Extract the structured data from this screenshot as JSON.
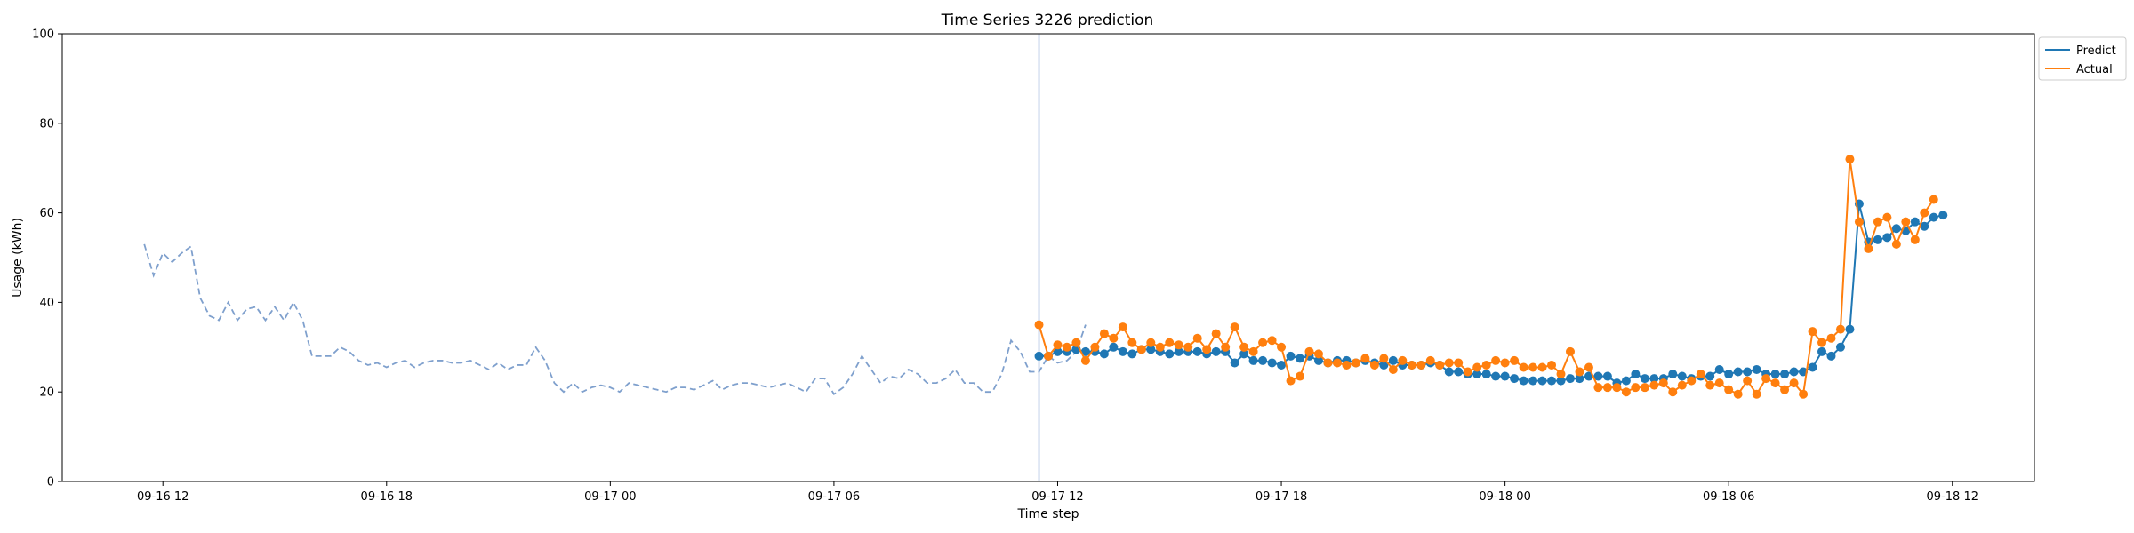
{
  "chart_data": {
    "type": "line",
    "title": "Time Series 3226 prediction",
    "xlabel": "Time step",
    "ylabel": "Usage (kWh)",
    "ylim": [
      0,
      100
    ],
    "yticks": [
      0,
      20,
      40,
      60,
      80,
      100
    ],
    "xticks": [
      "09-16 12",
      "09-16 18",
      "09-17 00",
      "09-17 06",
      "09-17 12",
      "09-17 18",
      "09-18 00",
      "09-18 06",
      "09-18 12"
    ],
    "xlim_hours": [
      -2.7,
      50.2
    ],
    "x_origin": "09-16 12",
    "x_step_hours": 0.25,
    "forecast_start_hours": 23.5,
    "legend_position": "top-right",
    "colors": {
      "predict": "#1f77b4",
      "actual": "#ff7f0e",
      "history": "#7fa0cd",
      "cutoff": "#8ea8d6"
    },
    "history": {
      "start_hours": -0.5,
      "values": [
        53,
        46,
        51,
        49,
        51,
        52.5,
        41,
        37,
        36,
        40,
        36,
        38.5,
        39,
        36,
        39,
        36,
        40,
        36,
        28,
        28,
        28,
        30,
        29,
        27,
        26,
        26.5,
        25.5,
        26.5,
        27,
        25.5,
        26.5,
        27,
        27,
        26.5,
        26.5,
        27,
        26,
        25,
        26.5,
        25,
        26,
        26,
        30,
        27,
        22,
        20,
        22,
        20,
        21,
        21.5,
        21,
        20,
        22,
        21.5,
        21,
        20.5,
        20,
        21,
        21,
        20.5,
        21.5,
        22.5,
        20.5,
        21.5,
        22,
        22,
        21.5,
        21,
        21.5,
        22,
        21,
        20,
        23,
        23,
        19.5,
        21,
        24,
        28,
        25,
        22,
        23.5,
        23,
        25,
        24,
        22,
        22,
        23,
        25,
        22,
        22,
        20,
        20,
        24,
        31.5,
        29,
        24.5,
        24.5,
        28,
        26.5,
        27,
        29,
        35
      ]
    },
    "series": [
      {
        "name": "Predict",
        "start_hours": 23.5,
        "values": [
          28,
          28,
          29,
          29,
          29.5,
          29,
          29,
          28.5,
          30,
          29,
          28.5,
          29.5,
          29.5,
          29,
          28.5,
          29,
          29,
          29,
          28.5,
          29,
          29,
          26.5,
          28.5,
          27,
          27,
          26.5,
          26,
          28,
          27.5,
          28,
          27,
          26.5,
          27,
          27,
          26.5,
          27,
          26.5,
          26,
          27,
          26,
          26,
          26,
          26.5,
          26,
          24.5,
          24.5,
          24,
          24,
          24,
          23.5,
          23.5,
          23,
          22.5,
          22.5,
          22.5,
          22.5,
          22.5,
          23,
          23,
          23.5,
          23.5,
          23.5,
          22,
          22.5,
          24,
          23,
          23,
          23,
          24,
          23.5,
          23,
          23.5,
          23.5,
          25,
          24,
          24.5,
          24.5,
          25,
          24,
          24,
          24,
          24.5,
          24.5,
          25.5,
          29,
          28,
          30,
          34,
          62,
          53.5,
          54,
          54.5,
          56.5,
          56,
          58,
          57,
          59,
          59.5
        ]
      },
      {
        "name": "Actual",
        "start_hours": 23.5,
        "values": [
          35,
          28,
          30.5,
          30,
          31,
          27,
          30,
          33,
          32,
          34.5,
          31,
          29.5,
          31,
          30,
          31,
          30.5,
          30,
          32,
          29.5,
          33,
          30,
          34.5,
          30,
          29,
          31,
          31.5,
          30,
          22.5,
          23.5,
          29,
          28.5,
          26.5,
          26.5,
          26,
          26.5,
          27.5,
          26,
          27.5,
          25,
          27,
          26,
          26,
          27,
          26,
          26.5,
          26.5,
          24.5,
          25.5,
          26,
          27,
          26.5,
          27,
          25.5,
          25.5,
          25.5,
          26,
          24,
          29,
          24.5,
          25.5,
          21,
          21,
          21,
          20,
          21,
          21,
          21.5,
          22,
          20,
          21.5,
          22.5,
          24,
          21.5,
          22,
          20.5,
          19.5,
          22.5,
          19.5,
          23,
          22,
          20.5,
          22,
          19.5,
          33.5,
          31,
          32,
          34,
          72,
          58,
          52,
          58,
          59,
          53,
          58,
          54,
          60,
          63
        ]
      }
    ]
  }
}
